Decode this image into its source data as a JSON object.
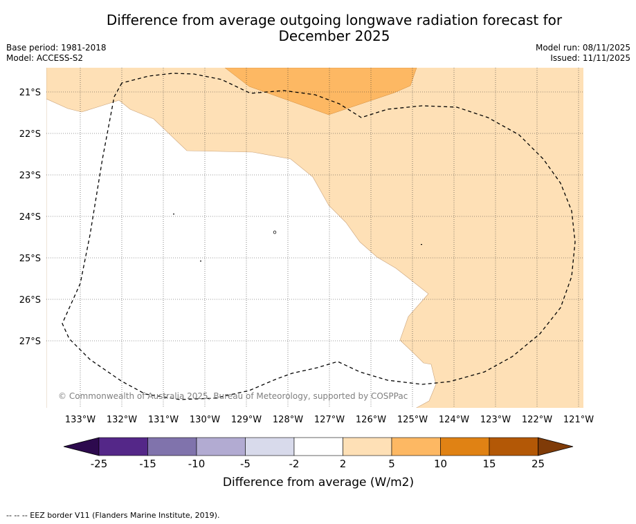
{
  "title_line1": "Difference from average outgoing longwave radiation forecast for",
  "title_line2": "December 2025",
  "base_period": "Base period: 1981-2018",
  "model": "Model: ACCESS-S2",
  "model_run": "Model run: 08/11/2025",
  "issued": "Issued: 11/11/2025",
  "copyright": "© Commonwealth of Australia 2025, Bureau of Meteorology, supported by COSPPac",
  "lat_labels": [
    "21°S",
    "22°S",
    "23°S",
    "24°S",
    "25°S",
    "26°S",
    "27°S"
  ],
  "lon_labels": [
    "133°W",
    "132°W",
    "131°W",
    "130°W",
    "129°W",
    "128°W",
    "127°W",
    "126°W",
    "125°W",
    "124°W",
    "123°W",
    "122°W",
    "121°W"
  ],
  "colorbar": {
    "title": "Difference from average (W/m2)",
    "tick_labels": [
      "-25",
      "-15",
      "-10",
      "-5",
      "-2",
      "2",
      "5",
      "10",
      "15",
      "25"
    ],
    "colors": [
      "#2d0a4e",
      "#542788",
      "#8073ac",
      "#b2abd2",
      "#d8daeb",
      "#ffffff",
      "#fee0b6",
      "#fdb863",
      "#e08214",
      "#b35806",
      "#7f3b08"
    ]
  },
  "legend_note": "--  --  -- EEZ border V11 (Flanders Marine Institute, 2019)."
}
